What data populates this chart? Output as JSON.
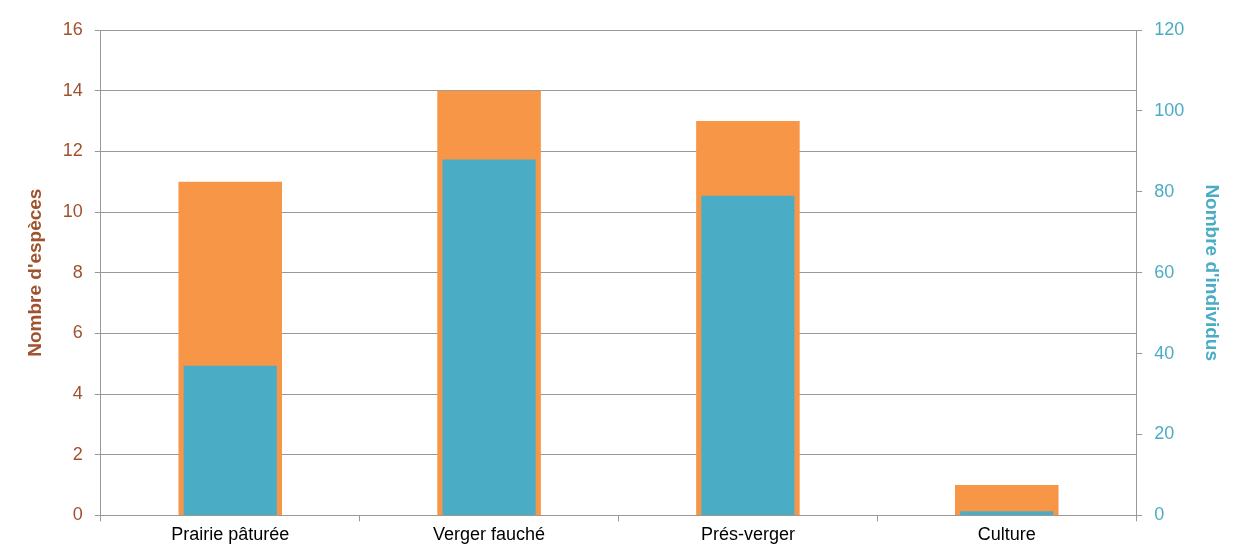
{
  "chart_data": {
    "type": "bar",
    "ylabel": "Nombre d'espèces",
    "y2label": "Nombre d'individus",
    "categories": [
      "Prairie pâturée",
      "Verger fauché",
      "Prés-verger",
      "Culture"
    ],
    "series": [
      {
        "color": "#f79646",
        "values": [
          11,
          14,
          13,
          1
        ]
      },
      {
        "color": "#4bacc6",
        "values": [
          37,
          88,
          79,
          1
        ],
        "axis": "y2"
      }
    ],
    "ylim": [
      0,
      16
    ],
    "yticks": [
      0,
      2,
      4,
      6,
      8,
      10,
      12,
      14,
      16
    ],
    "y2lim": [
      0,
      120
    ],
    "y2ticks": [
      0,
      20,
      40,
      60,
      80,
      100,
      120
    ],
    "grid": "y",
    "legend": false
  }
}
